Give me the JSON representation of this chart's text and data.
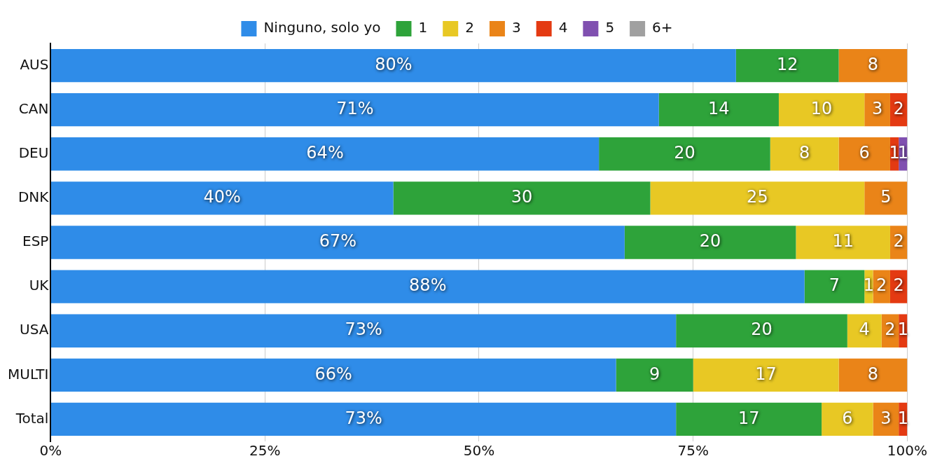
{
  "chart_data": {
    "type": "bar",
    "orientation": "horizontal",
    "stacked": true,
    "legend": "top",
    "grid": "x",
    "categories": [
      "AUS",
      "CAN",
      "DEU",
      "DNK",
      "ESP",
      "UK",
      "USA",
      "MULTI",
      "Total"
    ],
    "xlim": [
      0,
      100
    ],
    "xticks": [
      {
        "value": 0,
        "label": "0%"
      },
      {
        "value": 25,
        "label": "25%"
      },
      {
        "value": 50,
        "label": "50%"
      },
      {
        "value": 75,
        "label": "75%"
      },
      {
        "value": 100,
        "label": "100%"
      }
    ],
    "series": [
      {
        "name": "Ninguno, solo yo",
        "color": "#2f8ce8",
        "values": [
          80,
          71,
          64,
          40,
          67,
          88,
          73,
          66,
          73
        ],
        "value_labels": [
          "80%",
          "71%",
          "64%",
          "40%",
          "67%",
          "88%",
          "73%",
          "66%",
          "73%"
        ]
      },
      {
        "name": "1",
        "color": "#2ea33a",
        "values": [
          12,
          14,
          20,
          30,
          20,
          7,
          20,
          9,
          17
        ],
        "value_labels": [
          "12",
          "14",
          "20",
          "30",
          "20",
          "7",
          "20",
          "9",
          "17"
        ]
      },
      {
        "name": "2",
        "color": "#e8c824",
        "values": [
          null,
          10,
          8,
          25,
          11,
          1,
          4,
          17,
          6
        ],
        "value_labels": [
          null,
          "10",
          "8",
          "25",
          "11",
          "1",
          "4",
          "17",
          "6"
        ]
      },
      {
        "name": "3",
        "color": "#ea8418",
        "values": [
          8,
          3,
          6,
          5,
          2,
          2,
          2,
          8,
          3
        ],
        "value_labels": [
          "8",
          "3",
          "6",
          "5",
          "2",
          "2",
          "2",
          "8",
          "3"
        ]
      },
      {
        "name": "4",
        "color": "#e43a12",
        "values": [
          null,
          2,
          1,
          null,
          null,
          2,
          1,
          null,
          1
        ],
        "value_labels": [
          null,
          "2",
          "1",
          null,
          null,
          "2",
          "1",
          null,
          "1"
        ]
      },
      {
        "name": "5",
        "color": "#8050b0",
        "values": [
          null,
          null,
          1,
          null,
          null,
          null,
          null,
          null,
          null
        ],
        "value_labels": [
          null,
          null,
          "1",
          null,
          null,
          null,
          null,
          null,
          null
        ]
      },
      {
        "name": "6+",
        "color": "#a0a0a0",
        "values": [
          null,
          null,
          null,
          null,
          null,
          null,
          null,
          null,
          null
        ]
      }
    ]
  }
}
